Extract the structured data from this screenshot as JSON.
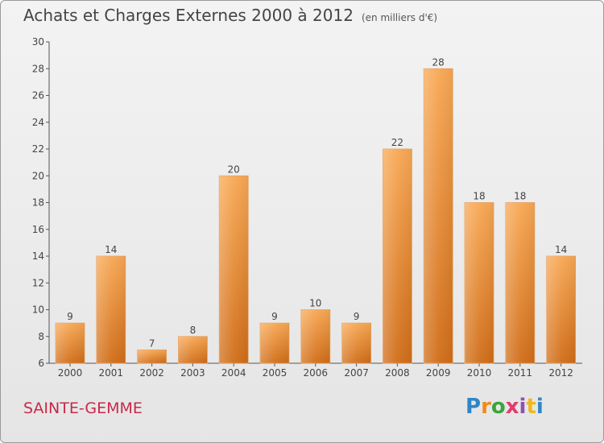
{
  "header": {
    "title": "Achats et Charges Externes 2000 à 2012",
    "unit": "(en milliers d'€)"
  },
  "footer": {
    "place": "SAINTE-GEMME",
    "logo": "Proxiti"
  },
  "colors": {
    "bar_light": "#f7a552",
    "bar_dark": "#d0701b",
    "place_text": "#c8294a"
  },
  "chart_data": {
    "type": "bar",
    "categories": [
      "2000",
      "2001",
      "2002",
      "2003",
      "2004",
      "2005",
      "2006",
      "2007",
      "2008",
      "2009",
      "2010",
      "2011",
      "2012"
    ],
    "values": [
      9,
      14,
      7,
      8,
      20,
      9,
      10,
      9,
      22,
      28,
      18,
      18,
      14
    ],
    "ylim": [
      6,
      30
    ],
    "yticks": [
      6,
      8,
      10,
      12,
      14,
      16,
      18,
      20,
      22,
      24,
      26,
      28,
      30
    ],
    "grid": false,
    "legend": "none",
    "data_labels": true
  }
}
